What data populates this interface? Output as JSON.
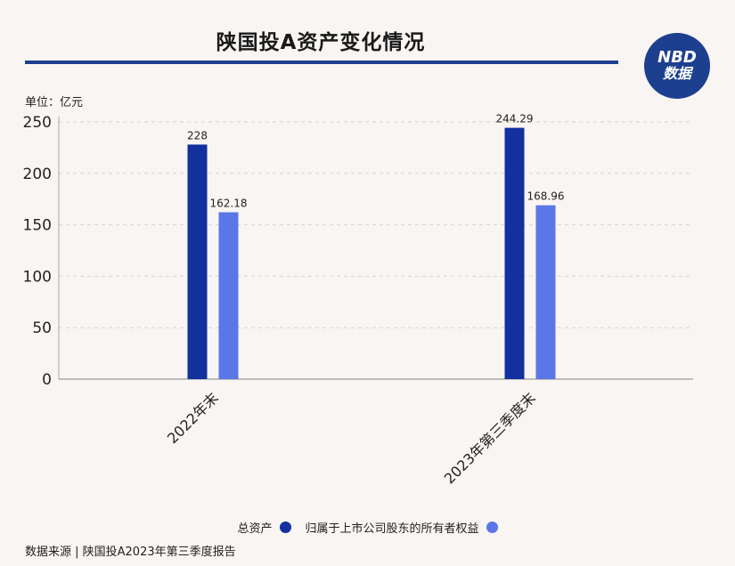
{
  "header": {
    "title": "陕国投A资产变化情况",
    "logo_line1": "NBD",
    "logo_line2": "数据"
  },
  "unit_label": "单位：亿元",
  "source": "数据来源 | 陕国投A2023年第三季度报告",
  "colors": {
    "series1": "#12309e",
    "series2": "#5b76e6",
    "brand": "#1d3f8f"
  },
  "chart_data": {
    "type": "bar",
    "categories": [
      "2022年末",
      "2023年第三季度末"
    ],
    "series": [
      {
        "name": "总资产",
        "values": [
          228,
          244.29
        ],
        "labels": [
          "228",
          "244.29"
        ]
      },
      {
        "name": "归属于上市公司股东的所有者权益",
        "values": [
          162.18,
          168.96
        ],
        "labels": [
          "162.18",
          "168.96"
        ]
      }
    ],
    "ylim": [
      0,
      250
    ],
    "yticks": [
      0,
      50,
      100,
      150,
      200,
      250
    ],
    "grid": true,
    "legend_position": "bottom"
  }
}
